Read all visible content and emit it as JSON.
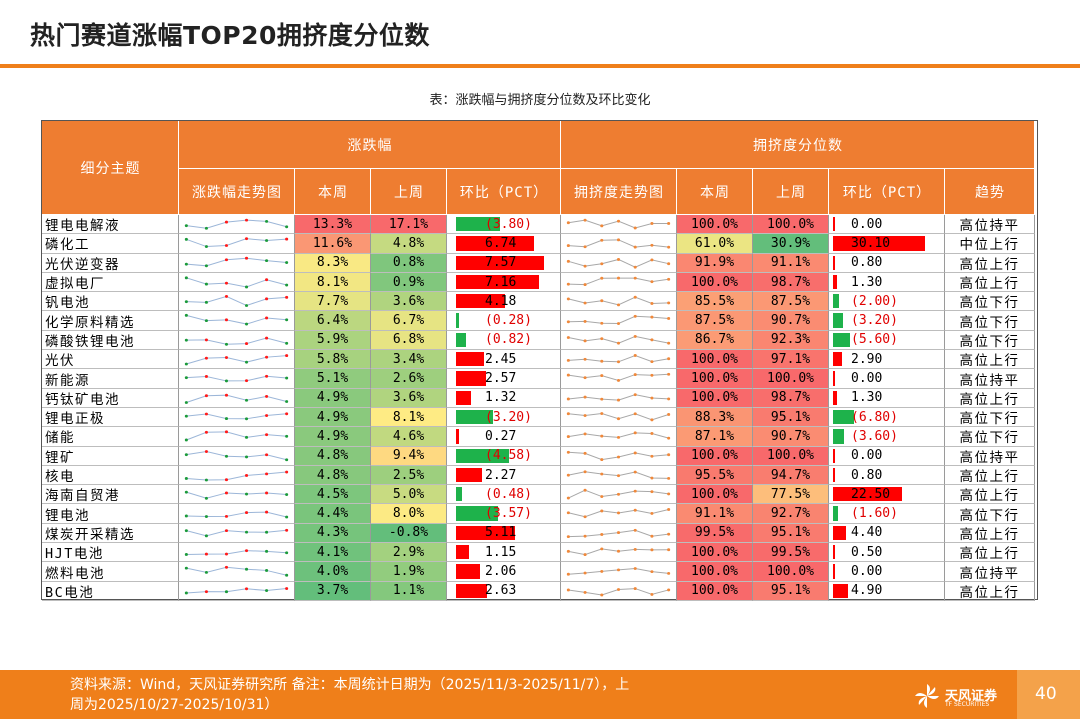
{
  "title": "热门赛道涨幅TOP20拥挤度分位数",
  "table_caption": "表：涨跌幅与拥挤度分位数及环比变化",
  "headers": {
    "topic": "细分主题",
    "change_group": "涨跌幅",
    "crowd_group": "拥挤度分位数",
    "change_trend": "涨跌幅走势图",
    "this_week": "本周",
    "last_week": "上周",
    "qoq": "环比（PCT）",
    "crowd_trend": "拥挤度走势图",
    "crowd_this_week": "本周",
    "crowd_last_week": "上周",
    "crowd_qoq": "环比（PCT）",
    "direction": "趋势"
  },
  "rows": [
    {
      "name": "锂电电解液",
      "cw": "13.3%",
      "lw": "17.1%",
      "qoq": "(3.80)",
      "qv": -3.8,
      "ccw": "100.0%",
      "clw": "100.0%",
      "cq": "0.00",
      "cqv": 0.0,
      "trend": "高位持平"
    },
    {
      "name": "磷化工",
      "cw": "11.6%",
      "lw": "4.8%",
      "qoq": "6.74",
      "qv": 6.74,
      "ccw": "61.0%",
      "clw": "30.9%",
      "cq": "30.10",
      "cqv": 30.1,
      "trend": "中位上行"
    },
    {
      "name": "光伏逆变器",
      "cw": "8.3%",
      "lw": "0.8%",
      "qoq": "7.57",
      "qv": 7.57,
      "ccw": "91.9%",
      "clw": "91.1%",
      "cq": "0.80",
      "cqv": 0.8,
      "trend": "高位上行"
    },
    {
      "name": "虚拟电厂",
      "cw": "8.1%",
      "lw": "0.9%",
      "qoq": "7.16",
      "qv": 7.16,
      "ccw": "100.0%",
      "clw": "98.7%",
      "cq": "1.30",
      "cqv": 1.3,
      "trend": "高位上行"
    },
    {
      "name": "钒电池",
      "cw": "7.7%",
      "lw": "3.6%",
      "qoq": "4.18",
      "qv": 4.18,
      "ccw": "85.5%",
      "clw": "87.5%",
      "cq": "(2.00)",
      "cqv": -2.0,
      "trend": "高位下行"
    },
    {
      "name": "化学原料精选",
      "cw": "6.4%",
      "lw": "6.7%",
      "qoq": "(0.28)",
      "qv": -0.28,
      "ccw": "87.5%",
      "clw": "90.7%",
      "cq": "(3.20)",
      "cqv": -3.2,
      "trend": "高位下行"
    },
    {
      "name": "磷酸铁锂电池",
      "cw": "5.9%",
      "lw": "6.8%",
      "qoq": "(0.82)",
      "qv": -0.82,
      "ccw": "86.7%",
      "clw": "92.3%",
      "cq": "(5.60)",
      "cqv": -5.6,
      "trend": "高位下行"
    },
    {
      "name": "光伏",
      "cw": "5.8%",
      "lw": "3.4%",
      "qoq": "2.45",
      "qv": 2.45,
      "ccw": "100.0%",
      "clw": "97.1%",
      "cq": "2.90",
      "cqv": 2.9,
      "trend": "高位上行"
    },
    {
      "name": "新能源",
      "cw": "5.1%",
      "lw": "2.6%",
      "qoq": "2.57",
      "qv": 2.57,
      "ccw": "100.0%",
      "clw": "100.0%",
      "cq": "0.00",
      "cqv": 0.0,
      "trend": "高位持平"
    },
    {
      "name": "钙钛矿电池",
      "cw": "4.9%",
      "lw": "3.6%",
      "qoq": "1.32",
      "qv": 1.32,
      "ccw": "100.0%",
      "clw": "98.7%",
      "cq": "1.30",
      "cqv": 1.3,
      "trend": "高位上行"
    },
    {
      "name": "锂电正极",
      "cw": "4.9%",
      "lw": "8.1%",
      "qoq": "(3.20)",
      "qv": -3.2,
      "ccw": "88.3%",
      "clw": "95.1%",
      "cq": "(6.80)",
      "cqv": -6.8,
      "trend": "高位下行"
    },
    {
      "name": "储能",
      "cw": "4.9%",
      "lw": "4.6%",
      "qoq": "0.27",
      "qv": 0.27,
      "ccw": "87.1%",
      "clw": "90.7%",
      "cq": "(3.60)",
      "cqv": -3.6,
      "trend": "高位下行"
    },
    {
      "name": "锂矿",
      "cw": "4.8%",
      "lw": "9.4%",
      "qoq": "(4.58)",
      "qv": -4.58,
      "ccw": "100.0%",
      "clw": "100.0%",
      "cq": "0.00",
      "cqv": 0.0,
      "trend": "高位持平"
    },
    {
      "name": "核电",
      "cw": "4.8%",
      "lw": "2.5%",
      "qoq": "2.27",
      "qv": 2.27,
      "ccw": "95.5%",
      "clw": "94.7%",
      "cq": "0.80",
      "cqv": 0.8,
      "trend": "高位上行"
    },
    {
      "name": "海南自贸港",
      "cw": "4.5%",
      "lw": "5.0%",
      "qoq": "(0.48)",
      "qv": -0.48,
      "ccw": "100.0%",
      "clw": "77.5%",
      "cq": "22.50",
      "cqv": 22.5,
      "trend": "高位上行"
    },
    {
      "name": "锂电池",
      "cw": "4.4%",
      "lw": "8.0%",
      "qoq": "(3.57)",
      "qv": -3.57,
      "ccw": "91.1%",
      "clw": "92.7%",
      "cq": "(1.60)",
      "cqv": -1.6,
      "trend": "高位下行"
    },
    {
      "name": "煤炭开采精选",
      "cw": "4.3%",
      "lw": "-0.8%",
      "qoq": "5.11",
      "qv": 5.11,
      "ccw": "99.5%",
      "clw": "95.1%",
      "cq": "4.40",
      "cqv": 4.4,
      "trend": "高位上行"
    },
    {
      "name": "HJT电池",
      "cw": "4.1%",
      "lw": "2.9%",
      "qoq": "1.15",
      "qv": 1.15,
      "ccw": "100.0%",
      "clw": "99.5%",
      "cq": "0.50",
      "cqv": 0.5,
      "trend": "高位上行"
    },
    {
      "name": "燃料电池",
      "cw": "4.0%",
      "lw": "1.9%",
      "qoq": "2.06",
      "qv": 2.06,
      "ccw": "100.0%",
      "clw": "100.0%",
      "cq": "0.00",
      "cqv": 0.0,
      "trend": "高位持平"
    },
    {
      "name": "BC电池",
      "cw": "3.7%",
      "lw": "1.1%",
      "qoq": "2.63",
      "qv": 2.63,
      "ccw": "100.0%",
      "clw": "95.1%",
      "cq": "4.90",
      "cqv": 4.9,
      "trend": "高位上行"
    }
  ],
  "colors": {
    "header": "#ee7d31",
    "bar_pos": "#ff0000",
    "bar_neg": "#1eb24b",
    "spark_line": "#9cb6d8",
    "spark_pos_dot": "#ff1a1a",
    "spark_neg_dot": "#1a9a3a",
    "spark2_line": "#a8a8a8",
    "spark2_dot": "#f0883a",
    "accent": "#ef7f1a"
  },
  "footer": {
    "source": "资料来源：Wind，天风证券研究所 备注：本周统计日期为（2025/11/3-2025/11/7），上周为2025/10/27-2025/10/31）"
  },
  "logo": {
    "cn": "天风证券",
    "en": "TF SECURITIES"
  },
  "page_number": "40"
}
